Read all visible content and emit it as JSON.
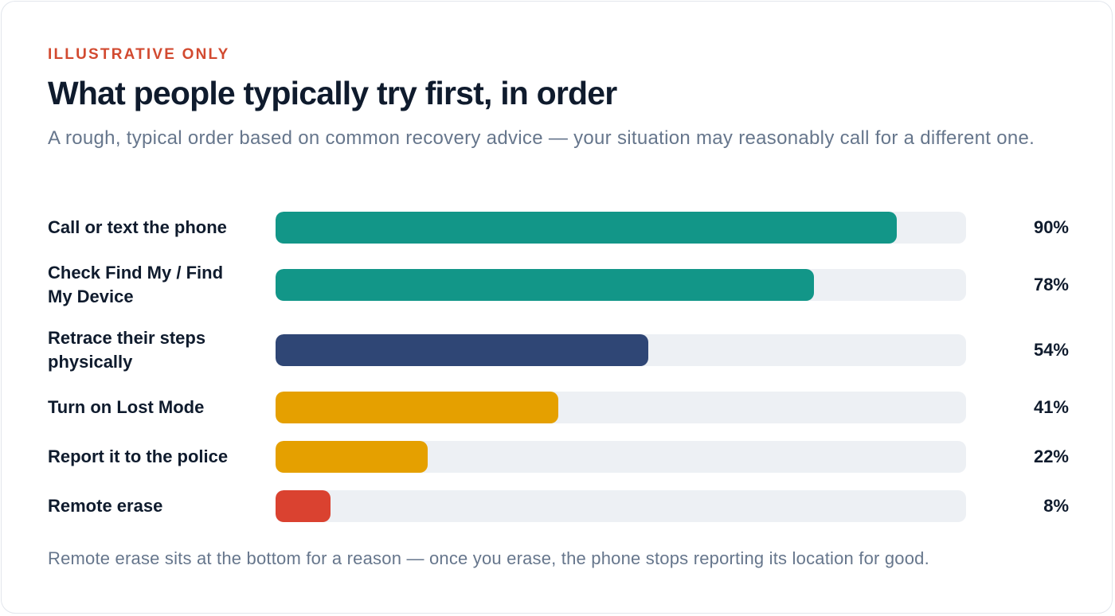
{
  "chart_data": {
    "type": "bar",
    "orientation": "horizontal",
    "kicker": "ILLUSTRATIVE ONLY",
    "title": "What people typically try first, in order",
    "subtitle": "A rough, typical order based on common recovery advice — your situation may reasonably call for a different one.",
    "categories": [
      "Call or text the phone",
      "Check Find My / Find My Device",
      "Retrace their steps physically",
      "Turn on Lost Mode",
      "Report it to the police",
      "Remote erase"
    ],
    "values": [
      90,
      78,
      54,
      41,
      22,
      8
    ],
    "value_labels": [
      "90%",
      "78%",
      "54%",
      "41%",
      "22%",
      "8%"
    ],
    "colors": [
      "#129688",
      "#129688",
      "#2f4675",
      "#e5a000",
      "#e5a000",
      "#da4230"
    ],
    "xlim": [
      0,
      100
    ],
    "note": "Remote erase sits at the bottom for a reason — once you erase, the phone stops reporting its location for good."
  }
}
